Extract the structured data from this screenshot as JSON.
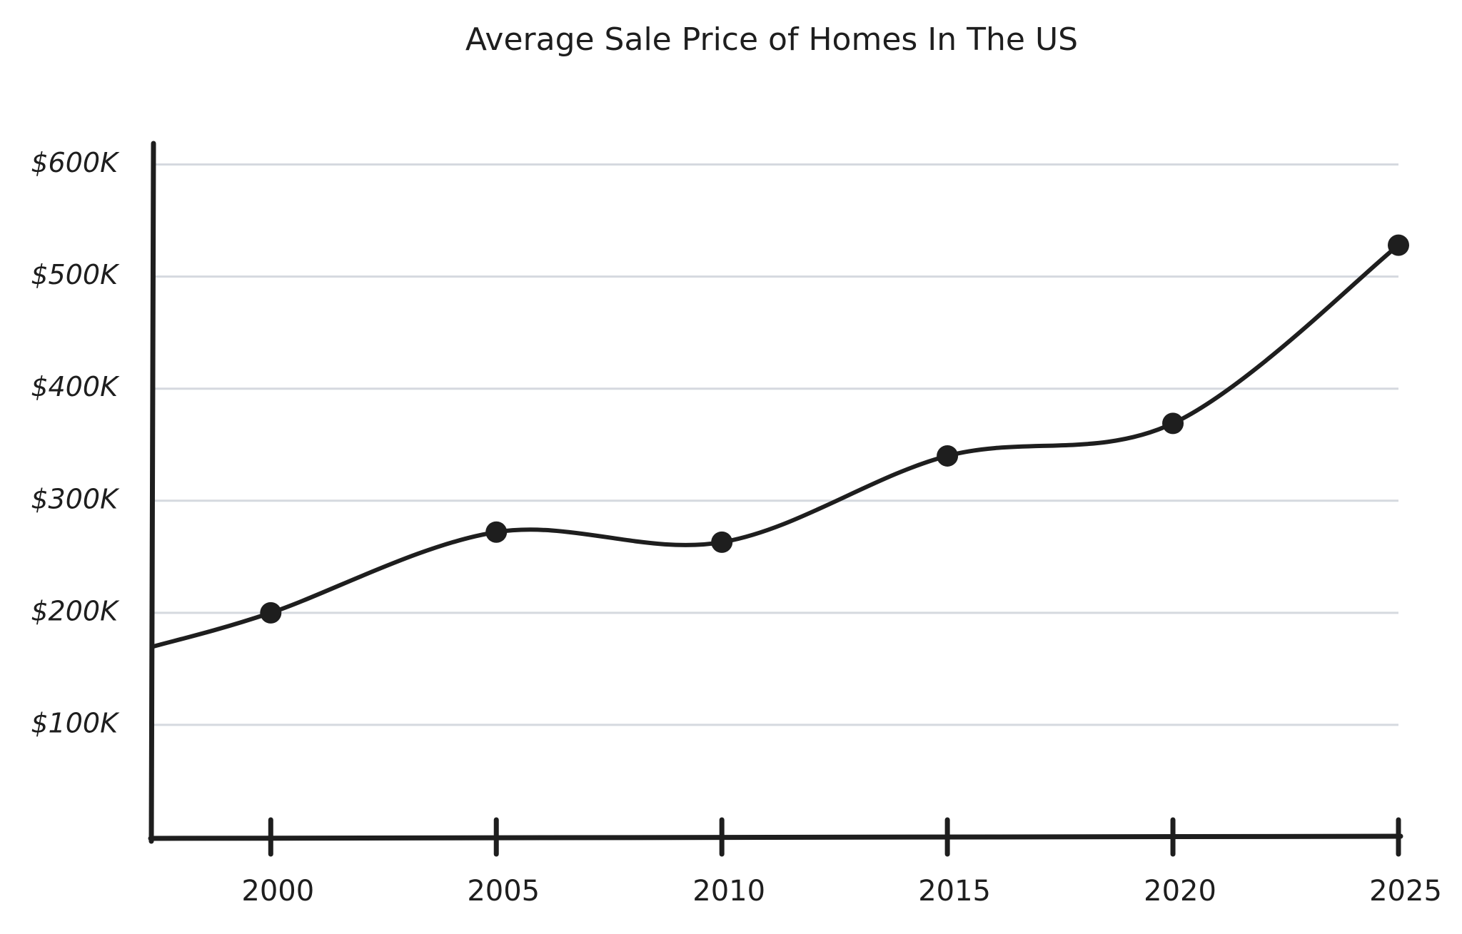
{
  "chart_data": {
    "type": "line",
    "title": "Average Sale Price of Homes In The US",
    "x": [
      1997.4,
      2000,
      2005,
      2010,
      2015,
      2020,
      2025
    ],
    "series": [
      {
        "name": "Average Sale Price",
        "color": "#1e1e1e",
        "values": [
          170000,
          200000,
          272000,
          263000,
          340000,
          369000,
          528000
        ]
      }
    ],
    "xlim": [
      1997.4,
      2025
    ],
    "xticks": [
      2000,
      2005,
      2010,
      2015,
      2020,
      2025
    ],
    "ylim": [
      0,
      615000
    ],
    "yticks": [
      {
        "value": 100000,
        "label": "$100K"
      },
      {
        "value": 200000,
        "label": "$200K"
      },
      {
        "value": 300000,
        "label": "$300K"
      },
      {
        "value": 400000,
        "label": "$400K"
      },
      {
        "value": 500000,
        "label": "$500K"
      },
      {
        "value": 600000,
        "label": "$600K"
      }
    ],
    "grid": true
  }
}
